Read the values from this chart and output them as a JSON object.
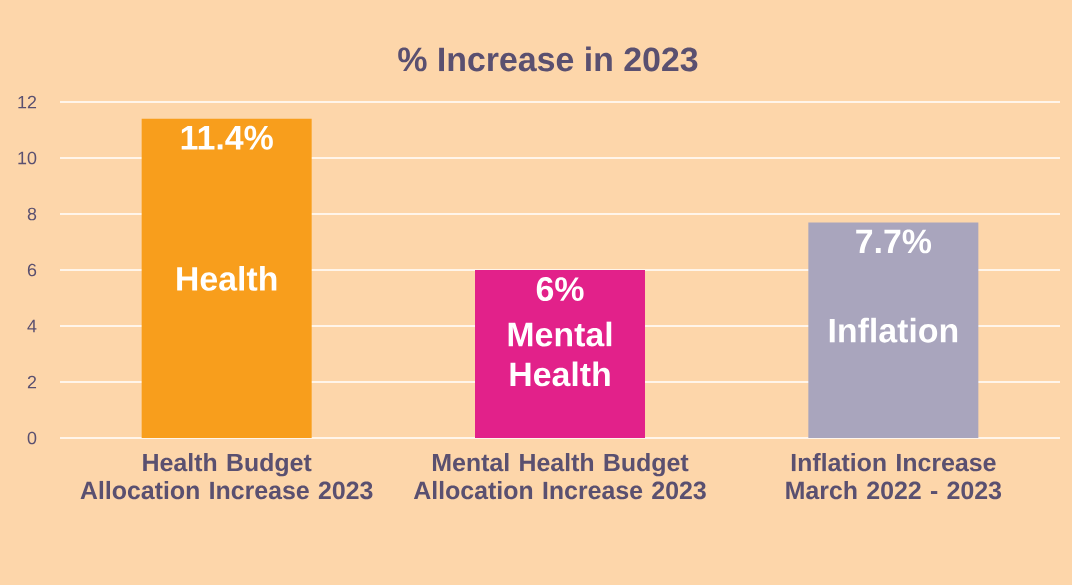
{
  "chart_data": {
    "type": "bar",
    "title": "% Increase in 2023",
    "categories": [
      "Health Budget Allocation Increase 2023",
      "Mental Health Budget Allocation Increase 2023",
      "Inflation Increase March 2022 - 2023"
    ],
    "values": [
      11.4,
      6,
      7.7
    ],
    "colors": [
      "#f89e1c",
      "#e2218a",
      "#a9a5bd"
    ],
    "value_labels": [
      "11.4%",
      "6%",
      "7.7%"
    ],
    "annotations": [
      "Health",
      "Mental Health",
      "Inflation"
    ],
    "ylim": [
      0,
      12
    ],
    "yticks": [
      0,
      2,
      4,
      6,
      8,
      10,
      12
    ],
    "grid": "y"
  }
}
